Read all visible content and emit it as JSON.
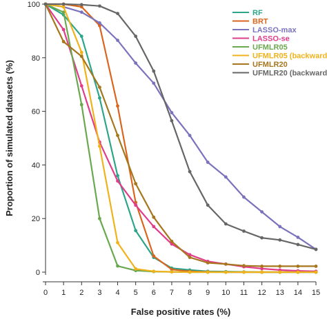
{
  "chart_data": {
    "type": "line",
    "xlabel": "False positive rates (%)",
    "ylabel": "Proportion of simulated datasets (%)",
    "xlim": [
      0,
      15
    ],
    "ylim": [
      0,
      100
    ],
    "xticks": [
      0,
      1,
      2,
      3,
      4,
      5,
      6,
      7,
      8,
      9,
      10,
      11,
      12,
      13,
      14,
      15
    ],
    "yticks": [
      0,
      20,
      40,
      60,
      80,
      100
    ],
    "grid": false,
    "legend_position": "top-right",
    "x": [
      0,
      1,
      2,
      3,
      4,
      5,
      6,
      7,
      8,
      9,
      10,
      11,
      12,
      13,
      14,
      15
    ],
    "series": [
      {
        "name": "RF",
        "color": "#2ca58a",
        "values": [
          100,
          96,
          88,
          65,
          36,
          15.5,
          5.5,
          1.5,
          0.8,
          0.3,
          0.2,
          0.1,
          0,
          0,
          0,
          0
        ]
      },
      {
        "name": "BRT",
        "color": "#d9661f",
        "values": [
          100,
          100,
          99,
          92,
          62,
          26,
          6,
          1,
          0.3,
          0.1,
          0,
          0,
          0,
          0,
          0,
          0
        ]
      },
      {
        "name": "LASSO-max",
        "color": "#7b72bd",
        "values": [
          100,
          99,
          97,
          93,
          86.5,
          78,
          70.5,
          59.5,
          51,
          41,
          35.5,
          28,
          22.5,
          17,
          13,
          8.5
        ]
      },
      {
        "name": "LASSO-se",
        "color": "#e03c8a",
        "values": [
          100,
          90.5,
          69.5,
          48.5,
          34,
          25,
          17,
          10.5,
          6.5,
          4,
          3,
          2,
          1.3,
          0.8,
          0.5,
          0.3
        ]
      },
      {
        "name": "UFMLR05",
        "color": "#6aa84f",
        "values": [
          100,
          97,
          62.5,
          20,
          2.3,
          0.6,
          0.2,
          0.1,
          0,
          0,
          0,
          0,
          0,
          0,
          0,
          0
        ]
      },
      {
        "name": "UFMLR05 (backward)",
        "color": "#f0b21a",
        "values": [
          100,
          99,
          82,
          47,
          11,
          1.2,
          0.3,
          0.1,
          0,
          0,
          0,
          0,
          0,
          0,
          0,
          0
        ]
      },
      {
        "name": "UFMLR20",
        "color": "#a6761d",
        "values": [
          100,
          86,
          80.5,
          69,
          51,
          33,
          20.5,
          11.5,
          5.5,
          3.5,
          3,
          2.4,
          2.2,
          2.2,
          2.2,
          2.2
        ]
      },
      {
        "name": "UFMLR20 (backward)",
        "color": "#666666",
        "values": [
          100,
          100,
          99.8,
          99.3,
          96.5,
          88,
          75,
          56.5,
          37.5,
          25,
          18,
          15.3,
          12.8,
          12,
          10.3,
          8.5
        ]
      }
    ]
  }
}
